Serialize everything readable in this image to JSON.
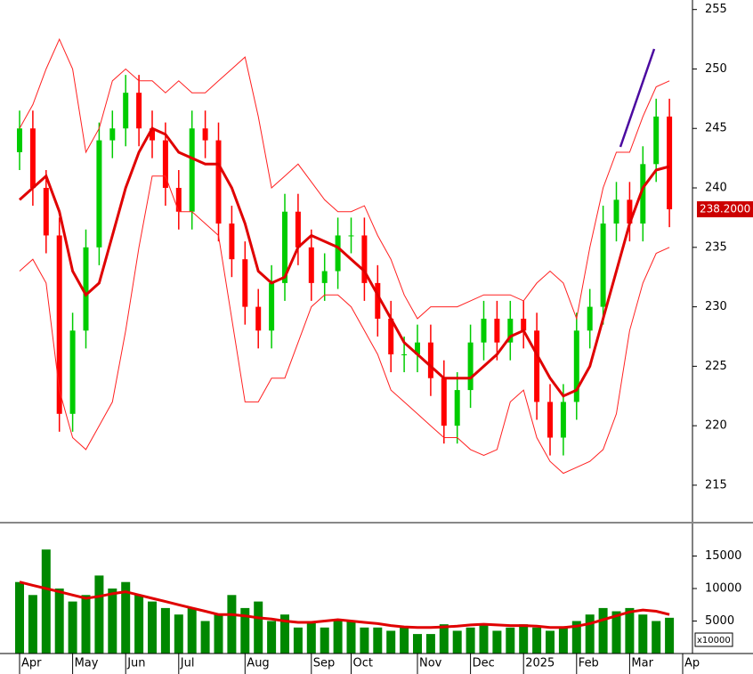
{
  "chart_data": [
    {
      "type": "candlestick",
      "categories": [
        "Apr",
        null,
        null,
        null,
        "May",
        null,
        null,
        null,
        "Jun",
        null,
        null,
        null,
        "Jul",
        null,
        null,
        null,
        null,
        "Aug",
        null,
        null,
        null,
        null,
        "Sep",
        null,
        null,
        "Oct",
        null,
        null,
        null,
        null,
        "Nov",
        null,
        null,
        null,
        "Dec",
        null,
        null,
        null,
        "2025",
        null,
        null,
        null,
        "Feb",
        null,
        null,
        null,
        "Mar",
        null,
        null,
        null,
        "Ap"
      ],
      "open": [
        243,
        245,
        240,
        236,
        221,
        228,
        235,
        244,
        245,
        248,
        245,
        244,
        240,
        238,
        245,
        244,
        237,
        234,
        230,
        228,
        232,
        238,
        235,
        232,
        233,
        236,
        236,
        232,
        229,
        226,
        226,
        227,
        224,
        220,
        223,
        227,
        229,
        227,
        229,
        228,
        222,
        219,
        222,
        228,
        230,
        237,
        239,
        237,
        242,
        246,
        null
      ],
      "high": [
        246.5,
        246.5,
        241.5,
        237.5,
        229.5,
        236.5,
        245.5,
        246.5,
        249.5,
        249.5,
        246.5,
        245.5,
        241.5,
        246.5,
        246.5,
        245.5,
        238.5,
        235.5,
        231.5,
        233.5,
        239.5,
        239.5,
        236.5,
        234.5,
        237.5,
        237.5,
        237.5,
        233.5,
        230.5,
        227.5,
        228.5,
        228.5,
        225.5,
        224.5,
        228.5,
        230.5,
        230.5,
        230.5,
        230.5,
        229.5,
        223.5,
        223.5,
        229.5,
        231.5,
        238.5,
        240.5,
        240.5,
        243.5,
        247.5,
        247.5,
        null
      ],
      "low": [
        241.5,
        238.5,
        234.5,
        219.5,
        219.5,
        226.5,
        233.5,
        242.5,
        243.5,
        243.5,
        242.5,
        238.5,
        236.5,
        236.5,
        242.5,
        235.5,
        232.5,
        228.5,
        226.5,
        226.5,
        230.5,
        233.5,
        230.5,
        230.5,
        231.5,
        234.5,
        230.5,
        227.5,
        224.5,
        224.5,
        224.5,
        222.5,
        218.5,
        218.5,
        221.5,
        225.5,
        225.5,
        225.5,
        226.5,
        220.5,
        217.5,
        217.5,
        220.5,
        226.5,
        228.5,
        235.5,
        235.5,
        235.5,
        240.5,
        236.7,
        null
      ],
      "close": [
        245,
        240,
        236,
        221,
        228,
        235,
        244,
        245,
        248,
        245,
        244,
        240,
        238,
        245,
        244,
        237,
        234,
        230,
        228,
        232,
        238,
        235,
        232,
        233,
        236,
        236,
        232,
        229,
        226,
        226,
        227,
        224,
        220,
        223,
        227,
        229,
        227,
        229,
        228,
        222,
        219,
        222,
        228,
        230,
        237,
        239,
        237,
        242,
        246,
        238.2,
        null
      ],
      "up_color": "#00cc00",
      "down_color": "#ff0000",
      "series": [
        {
          "color": "#e00000",
          "values": [
            239,
            240,
            241,
            238,
            233,
            231,
            232,
            236,
            240,
            243,
            245,
            244.5,
            243,
            242.5,
            242,
            242,
            240,
            237,
            233,
            232,
            232.5,
            235,
            236,
            235.5,
            235,
            234,
            233,
            231,
            229,
            227,
            226,
            225,
            224,
            224,
            224,
            225,
            226,
            227.5,
            228,
            226,
            224,
            222.5,
            223,
            225,
            229,
            233,
            237,
            240,
            241.5,
            241.8,
            null
          ]
        },
        {
          "color": "#ff2020",
          "values": [
            245,
            247,
            250,
            252.5,
            250,
            243,
            245,
            249,
            250,
            249,
            249,
            248,
            249,
            248,
            248,
            249,
            250,
            251,
            246,
            240,
            241,
            242,
            240.5,
            239,
            238,
            238,
            238.5,
            236,
            234,
            231,
            229,
            230,
            230,
            230,
            230.5,
            231,
            231,
            231,
            230.5,
            232,
            233,
            232,
            229,
            235,
            240,
            243,
            243,
            246,
            248.5,
            249,
            null
          ]
        },
        {
          "color": "#ff2020",
          "values": [
            233,
            234,
            232,
            223,
            219,
            218,
            220,
            222,
            228,
            235,
            241,
            241,
            238,
            238,
            237,
            236,
            229,
            222,
            222,
            224,
            224,
            227,
            230,
            231,
            231,
            230,
            228,
            226,
            223,
            222,
            221,
            220,
            219,
            219,
            218,
            217.5,
            218,
            222,
            223,
            219,
            217,
            216,
            216.5,
            217,
            218,
            221,
            228,
            232,
            234.5,
            235,
            null
          ]
        }
      ],
      "last_price": {
        "value": 238.2,
        "label": "238.2000"
      },
      "ylim": [
        212,
        255.8
      ],
      "yticks": [
        215,
        220,
        225,
        230,
        235,
        240,
        245,
        250,
        255
      ]
    },
    {
      "type": "bar",
      "values": [
        11000,
        9000,
        16000,
        10000,
        8000,
        9000,
        12000,
        10000,
        11000,
        9000,
        8000,
        7000,
        6000,
        7000,
        5000,
        6000,
        9000,
        7000,
        8000,
        5000,
        6000,
        4000,
        5000,
        4000,
        5000,
        5000,
        4000,
        4000,
        3500,
        4000,
        3000,
        3000,
        4500,
        3500,
        4000,
        4500,
        3500,
        4000,
        4500,
        4000,
        3500,
        4000,
        5000,
        6000,
        7000,
        6500,
        7000,
        6000,
        5000,
        5500,
        null
      ],
      "color": "#008800",
      "series": [
        {
          "color": "#e00000",
          "values": [
            11000,
            10500,
            10000,
            9500,
            9000,
            8500,
            8800,
            9200,
            9500,
            9000,
            8500,
            8000,
            7500,
            7000,
            6500,
            6000,
            6000,
            5800,
            5500,
            5300,
            5000,
            4800,
            4800,
            5000,
            5200,
            5000,
            4800,
            4600,
            4300,
            4100,
            4000,
            4000,
            4100,
            4200,
            4400,
            4500,
            4400,
            4300,
            4300,
            4200,
            4000,
            4000,
            4200,
            4600,
            5200,
            5800,
            6400,
            6700,
            6500,
            6000,
            null
          ]
        }
      ],
      "unit_label": "x10000",
      "ylim": [
        0,
        20000
      ],
      "yticks": [
        5000,
        10000,
        15000
      ]
    }
  ]
}
